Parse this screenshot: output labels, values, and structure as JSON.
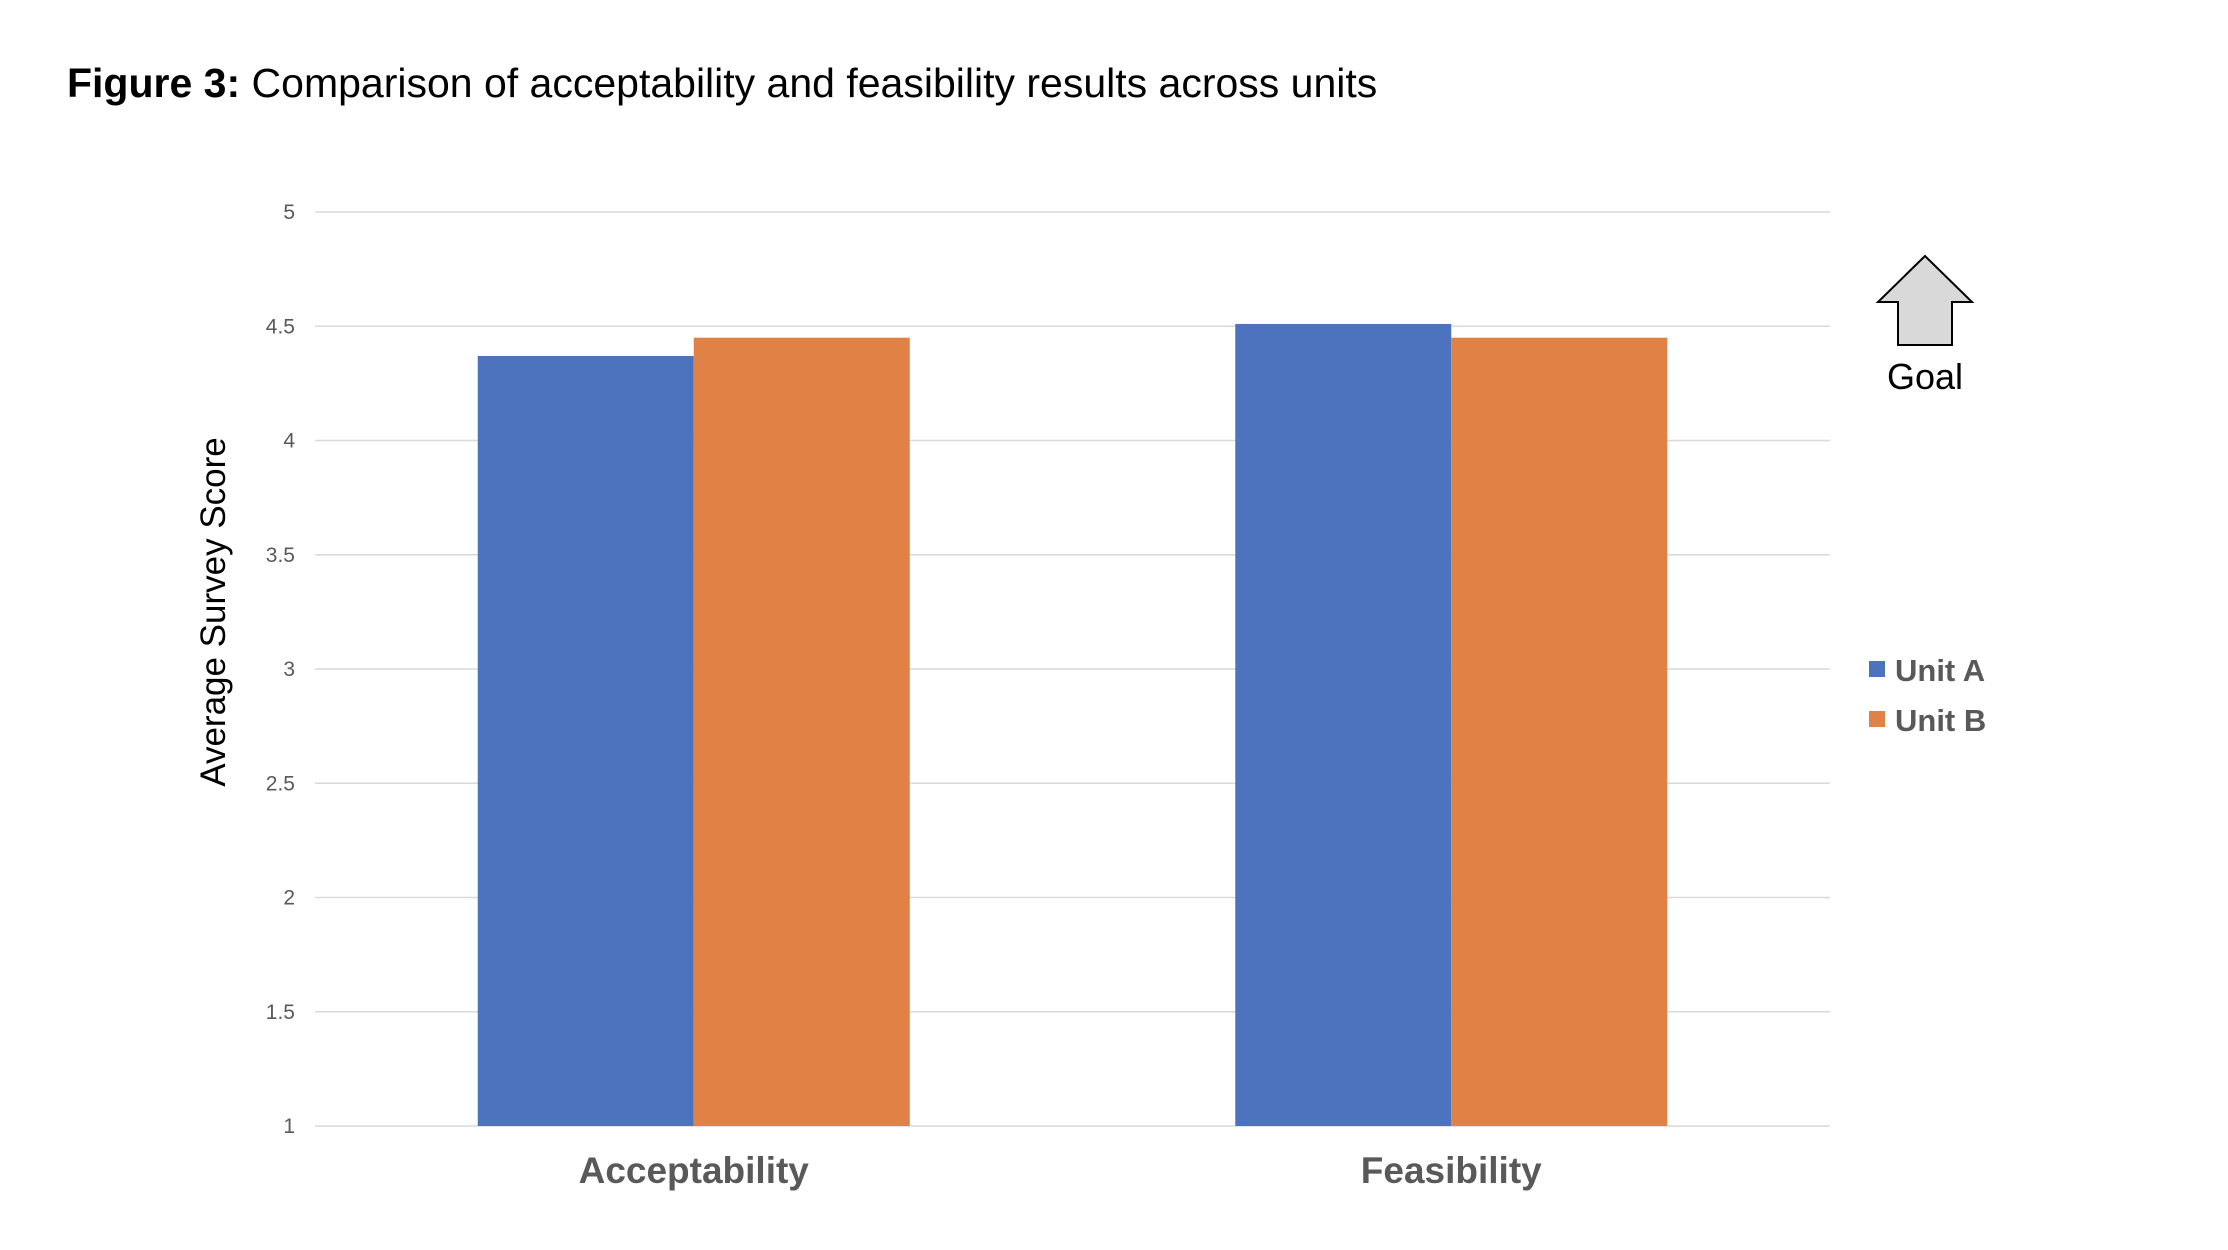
{
  "figure": {
    "label": "Figure 3:",
    "caption": " Comparison of acceptability and feasibility results across units"
  },
  "chart_data": {
    "type": "bar",
    "title": "",
    "xlabel": "",
    "ylabel": "Average Survey Score",
    "categories": [
      "Acceptability",
      "Feasibility"
    ],
    "series": [
      {
        "name": "Unit A",
        "color": "#4e73be",
        "values": [
          4.37,
          4.51
        ]
      },
      {
        "name": "Unit B",
        "color": "#e08245",
        "values": [
          4.45,
          4.45
        ]
      }
    ],
    "ylim": [
      1,
      5
    ],
    "yticks": [
      1,
      1.5,
      2,
      2.5,
      3,
      3.5,
      4,
      4.5,
      5
    ],
    "ytick_labels": [
      "1",
      "1.5",
      "2",
      "2.5",
      "3",
      "3.5",
      "4",
      "4.5",
      "5"
    ],
    "grid": true,
    "gridline_color": "#d9d9d9",
    "legend_position": "right",
    "annotation": {
      "text": "Goal",
      "icon": "up-arrow-icon",
      "fill_color": "#d9d9d9"
    }
  }
}
